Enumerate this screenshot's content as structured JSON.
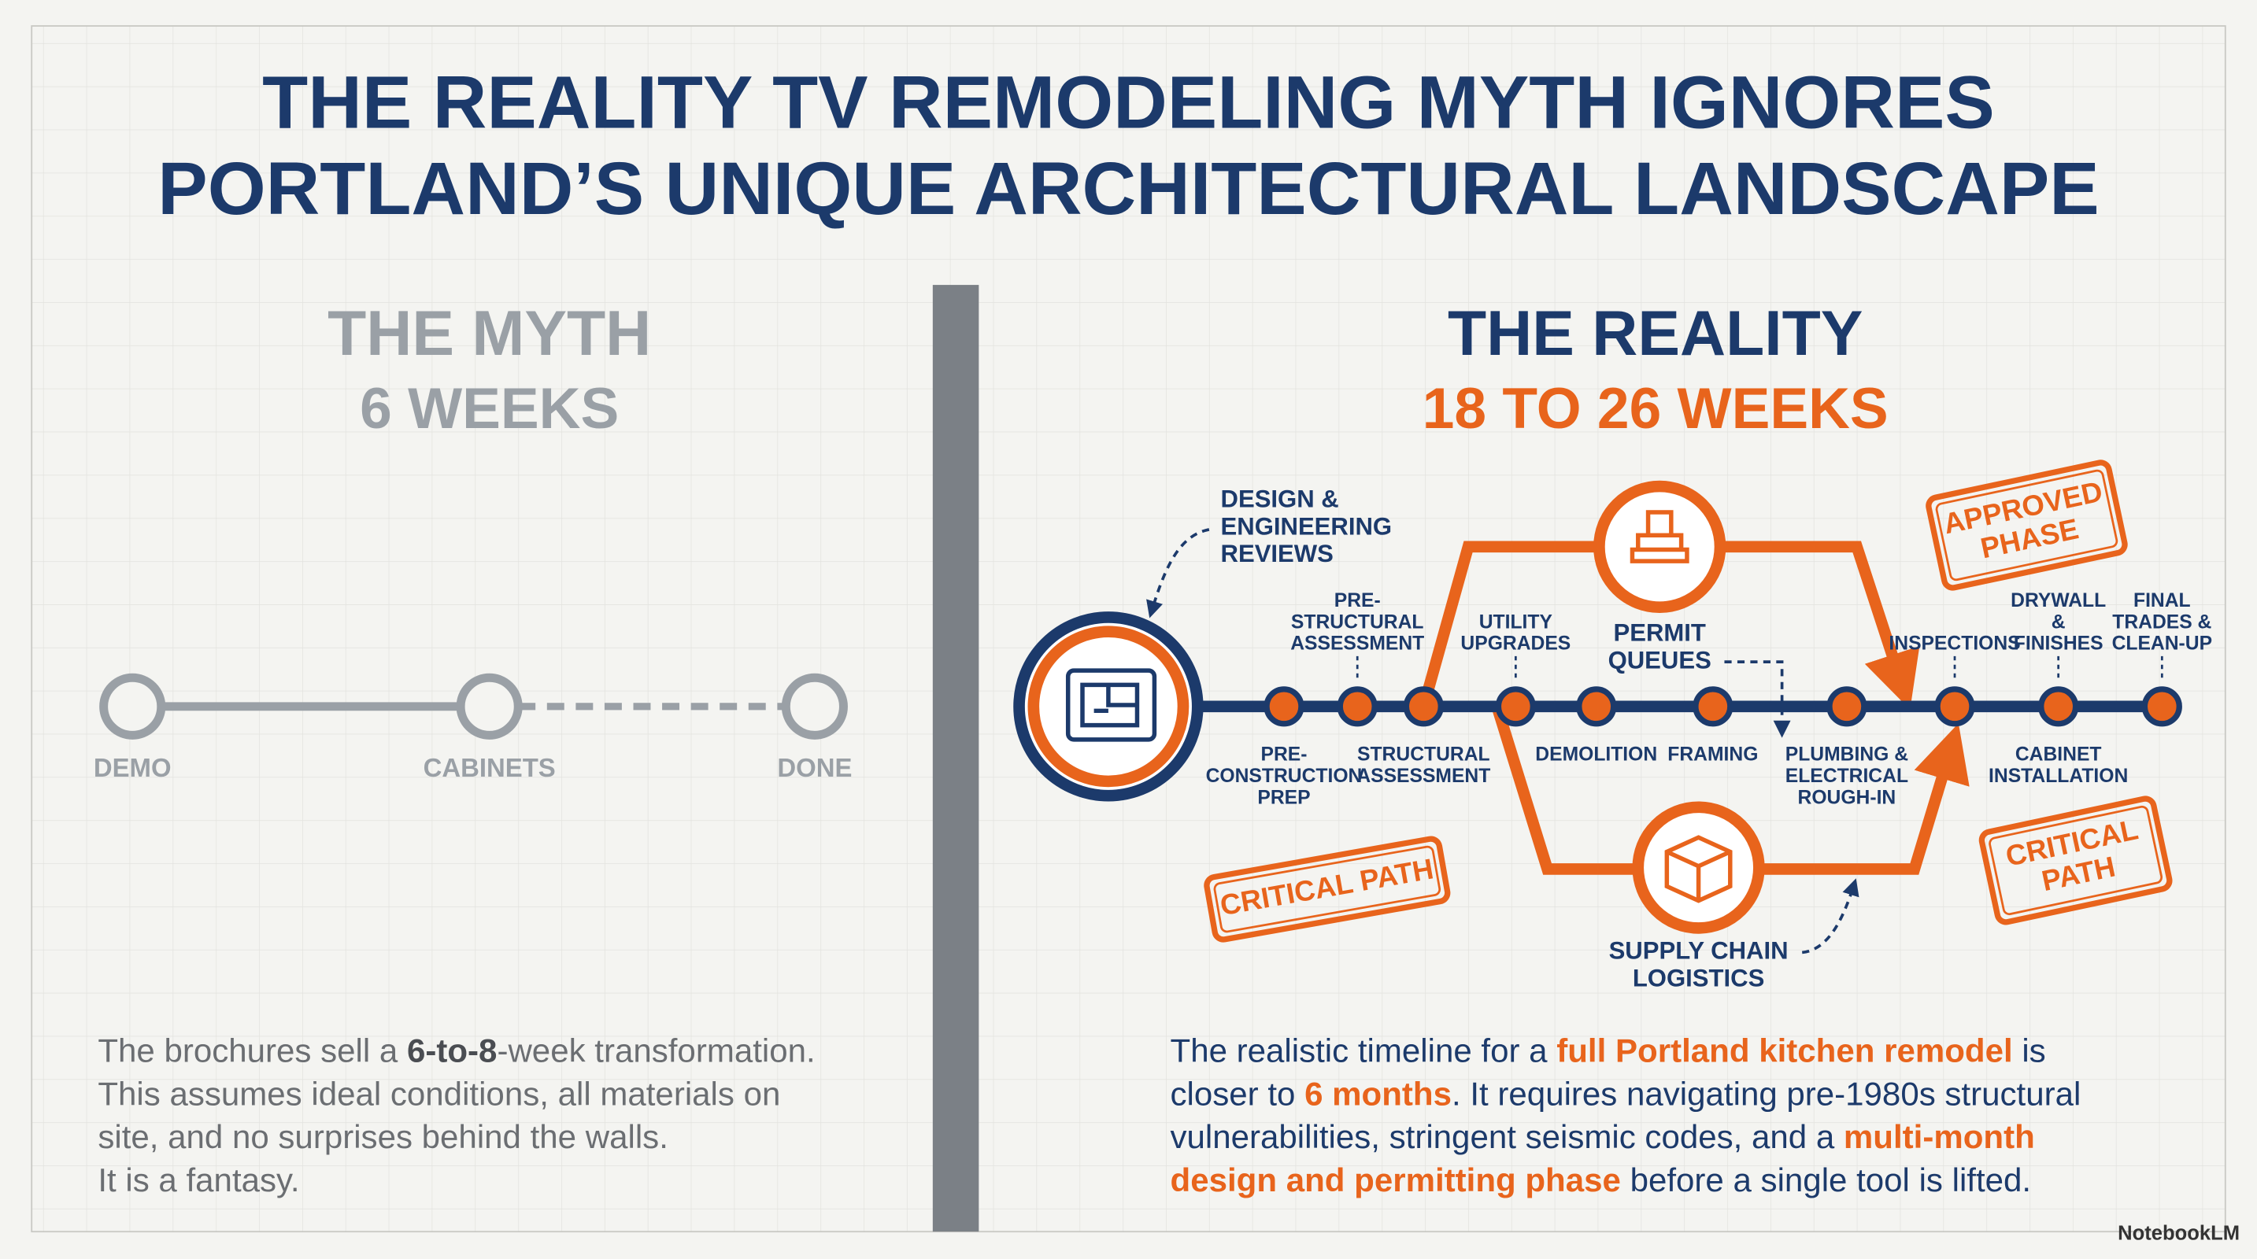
{
  "header": {
    "title_lines": [
      "THE REALITY TV REMODELING MYTH IGNORES",
      "PORTLAND’S UNIQUE ARCHITECTURAL LANDSCAPE"
    ]
  },
  "myth": {
    "heading": "THE MYTH",
    "duration": "6 WEEKS",
    "milestones": [
      "DEMO",
      "CABINETS",
      "DONE"
    ],
    "paragraph": [
      [
        {
          "text": "The brochures sell a "
        },
        {
          "text": "6-to-8",
          "emphasis": true
        },
        {
          "text": "-week transformation."
        }
      ],
      [
        {
          "text": "This assumes ideal conditions, all materials on"
        }
      ],
      [
        {
          "text": "site, and no surprises behind the walls."
        }
      ],
      [
        {
          "text": "It is a fantasy."
        }
      ]
    ]
  },
  "reality": {
    "heading": "THE REALITY",
    "duration": "18 TO 26 WEEKS",
    "steps": [
      {
        "label": [
          "PRE-",
          "CONSTRUCTION",
          "PREP"
        ],
        "position": "below"
      },
      {
        "label": [
          "PRE-",
          "STRUCTURAL",
          "ASSESSMENT"
        ],
        "position": "above"
      },
      {
        "label": [
          "STRUCTURAL",
          "ASSESSMENT"
        ],
        "position": "below"
      },
      {
        "label": [
          "UTILITY",
          "UPGRADES"
        ],
        "position": "above"
      },
      {
        "label": [
          "DEMOLITION"
        ],
        "position": "below"
      },
      {
        "label": [
          "FRAMING"
        ],
        "position": "below"
      },
      {
        "label": [
          "PLUMBING &",
          "ELECTRICAL",
          "ROUGH-IN"
        ],
        "position": "below"
      },
      {
        "label": [
          "INSPECTIONS"
        ],
        "position": "above"
      },
      {
        "label": [
          "DRYWALL",
          "&",
          "FINISHES"
        ],
        "position": "above",
        "second": [
          "CABINET",
          "INSTALLATION"
        ]
      },
      {
        "label": [
          "FINAL",
          "TRADES &",
          "CLEAN-UP"
        ],
        "position": "above"
      }
    ],
    "callouts": {
      "design": [
        "DESIGN &",
        "ENGINEERING",
        "REVIEWS"
      ],
      "permit": [
        "PERMIT",
        "QUEUES"
      ],
      "supply": [
        "SUPPLY CHAIN",
        "LOGISTICS"
      ]
    },
    "stamps": {
      "approved": [
        "APPROVED",
        "PHASE"
      ],
      "critical_left": [
        "CRITICAL PATH"
      ],
      "critical_right": [
        "CRITICAL",
        "PATH"
      ]
    },
    "paragraph": [
      [
        {
          "text": "The realistic timeline for a "
        },
        {
          "text": "full Portland kitchen remodel",
          "emphasis": true
        },
        {
          "text": " is"
        }
      ],
      [
        {
          "text": "closer to "
        },
        {
          "text": "6 months",
          "emphasis": true
        },
        {
          "text": ". It requires navigating pre-1980s structural"
        }
      ],
      [
        {
          "text": "vulnerabilities, stringent seismic codes, and a "
        },
        {
          "text": "multi-month",
          "emphasis": true
        }
      ],
      [
        {
          "text": "design and permitting phase",
          "emphasis": true
        },
        {
          "text": " before a single tool is lifted."
        }
      ]
    ]
  },
  "footer": {
    "watermark": "NotebookLM"
  }
}
